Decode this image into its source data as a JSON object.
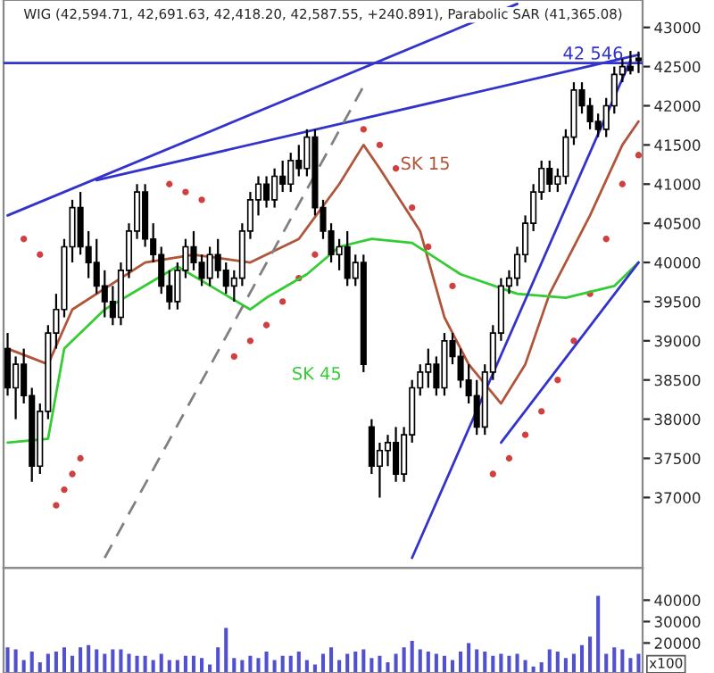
{
  "chart_data": [
    {
      "type": "candlestick",
      "title": "WIG (42,594.71, 42,691.63, 42,418.20, 42,587.55, +240.891), Parabolic SAR (41,365.08)",
      "categories": [
        null,
        null,
        null,
        null,
        null,
        null,
        null,
        null,
        null,
        null,
        null,
        null,
        null,
        null,
        null,
        null,
        null,
        null,
        null,
        null,
        null,
        null,
        null,
        null,
        null,
        null,
        null,
        null,
        null,
        null,
        null,
        null,
        null,
        null,
        null,
        null,
        null,
        null,
        null,
        null,
        null,
        null,
        null,
        null,
        null,
        null,
        null,
        null,
        null,
        null,
        null,
        null,
        null,
        null,
        null,
        null,
        null,
        null,
        null,
        null,
        null,
        null,
        null,
        null,
        null,
        null,
        null,
        null,
        null,
        null,
        null,
        null,
        null,
        null,
        null,
        null,
        null,
        null,
        null
      ],
      "ohlc": [
        [
          38900,
          39100,
          38300,
          38400
        ],
        [
          38400,
          38800,
          38000,
          38700
        ],
        [
          38700,
          38900,
          38200,
          38300
        ],
        [
          38300,
          38400,
          37200,
          37400
        ],
        [
          37400,
          38200,
          37300,
          38100
        ],
        [
          38100,
          39200,
          38000,
          39100
        ],
        [
          39100,
          39600,
          38900,
          39400
        ],
        [
          39400,
          40300,
          39300,
          40200
        ],
        [
          40200,
          40800,
          40000,
          40700
        ],
        [
          40700,
          40900,
          40100,
          40200
        ],
        [
          40200,
          40400,
          39800,
          40000
        ],
        [
          40000,
          40300,
          39600,
          39700
        ],
        [
          39700,
          39900,
          39300,
          39500
        ],
        [
          39500,
          39700,
          39200,
          39300
        ],
        [
          39300,
          40000,
          39200,
          39900
        ],
        [
          39900,
          40500,
          39800,
          40400
        ],
        [
          40400,
          41000,
          40300,
          40900
        ],
        [
          40900,
          41000,
          40200,
          40300
        ],
        [
          40300,
          40500,
          40000,
          40100
        ],
        [
          40100,
          40200,
          39600,
          39700
        ],
        [
          39700,
          39900,
          39400,
          39500
        ],
        [
          39500,
          40000,
          39400,
          39900
        ],
        [
          39900,
          40300,
          39800,
          40200
        ],
        [
          40200,
          40400,
          39900,
          40000
        ],
        [
          40000,
          40100,
          39700,
          39800
        ],
        [
          39800,
          40200,
          39700,
          40100
        ],
        [
          40100,
          40300,
          39800,
          39900
        ],
        [
          39900,
          40000,
          39600,
          39700
        ],
        [
          39700,
          39900,
          39500,
          39800
        ],
        [
          39800,
          40500,
          39700,
          40400
        ],
        [
          40400,
          40900,
          40300,
          40800
        ],
        [
          40800,
          41100,
          40600,
          41000
        ],
        [
          41000,
          41100,
          40700,
          40800
        ],
        [
          40800,
          41200,
          40700,
          41100
        ],
        [
          41100,
          41300,
          40900,
          41000
        ],
        [
          41000,
          41400,
          40900,
          41300
        ],
        [
          41300,
          41500,
          41100,
          41200
        ],
        [
          41200,
          41700,
          41100,
          41600
        ],
        [
          41600,
          41700,
          40600,
          40700
        ],
        [
          40700,
          40800,
          40300,
          40400
        ],
        [
          40400,
          40500,
          40000,
          40100
        ],
        [
          40100,
          40300,
          39900,
          40200
        ],
        [
          40200,
          40400,
          39700,
          39800
        ],
        [
          39800,
          40100,
          39700,
          40000
        ],
        [
          40000,
          40100,
          38600,
          38700
        ],
        [
          37900,
          38000,
          37300,
          37400
        ],
        [
          37400,
          37700,
          37000,
          37600
        ],
        [
          37600,
          37800,
          37400,
          37700
        ],
        [
          37700,
          37900,
          37200,
          37300
        ],
        [
          37300,
          37900,
          37200,
          37800
        ],
        [
          37800,
          38500,
          37700,
          38400
        ],
        [
          38400,
          38700,
          38300,
          38600
        ],
        [
          38600,
          38900,
          38400,
          38700
        ],
        [
          38700,
          38800,
          38300,
          38400
        ],
        [
          38400,
          39100,
          38300,
          39000
        ],
        [
          39000,
          39100,
          38700,
          38800
        ],
        [
          38800,
          38900,
          38400,
          38500
        ],
        [
          38500,
          38700,
          38200,
          38300
        ],
        [
          38300,
          38500,
          37800,
          37900
        ],
        [
          37900,
          38700,
          37800,
          38600
        ],
        [
          38600,
          39200,
          38500,
          39100
        ],
        [
          39100,
          39800,
          39000,
          39700
        ],
        [
          39700,
          39900,
          39600,
          39800
        ],
        [
          39800,
          40200,
          39700,
          40100
        ],
        [
          40100,
          40600,
          40000,
          40500
        ],
        [
          40500,
          41000,
          40400,
          40900
        ],
        [
          40900,
          41300,
          40800,
          41200
        ],
        [
          41200,
          41300,
          40900,
          41000
        ],
        [
          41000,
          41200,
          40900,
          41100
        ],
        [
          41100,
          41700,
          41000,
          41600
        ],
        [
          41600,
          42300,
          41500,
          42200
        ],
        [
          42200,
          42300,
          41900,
          42000
        ],
        [
          42000,
          42100,
          41700,
          41800
        ],
        [
          41800,
          41900,
          41600,
          41700
        ],
        [
          41700,
          42100,
          41600,
          42000
        ],
        [
          42000,
          42500,
          41900,
          42400
        ],
        [
          42400,
          42600,
          42300,
          42500
        ],
        [
          42500,
          42700,
          42400,
          42450
        ],
        [
          42594.71,
          42691.63,
          42418.2,
          42587.55
        ]
      ],
      "series": [
        {
          "type": "line",
          "color": "#b0553a",
          "values": [
            38900,
            null,
            null,
            null,
            null,
            38700,
            null,
            null,
            39400,
            null,
            null,
            null,
            null,
            null,
            null,
            null,
            null,
            40000,
            null,
            null,
            null,
            null,
            null,
            40100,
            null,
            null,
            null,
            null,
            null,
            null,
            40000,
            null,
            null,
            null,
            null,
            null,
            40300,
            null,
            null,
            null,
            null,
            41000,
            null,
            null,
            41500,
            null,
            41200,
            null,
            null,
            null,
            null,
            40400,
            null,
            null,
            39300,
            null,
            null,
            38700,
            null,
            null,
            null,
            38200,
            null,
            null,
            38700,
            null,
            null,
            39600,
            null,
            null,
            null,
            null,
            40600,
            null,
            null,
            null,
            41500,
            null,
            41800
          ]
        },
        {
          "type": "line",
          "color": "#33cc33",
          "values": [
            37700,
            null,
            null,
            null,
            null,
            37750,
            null,
            38900,
            null,
            null,
            null,
            null,
            39400,
            null,
            null,
            null,
            null,
            null,
            null,
            null,
            null,
            39950,
            null,
            null,
            null,
            null,
            null,
            null,
            null,
            null,
            39400,
            null,
            39550,
            null,
            null,
            null,
            null,
            39850,
            null,
            null,
            null,
            40200,
            null,
            null,
            null,
            40300,
            null,
            null,
            null,
            null,
            40250,
            null,
            null,
            40050,
            null,
            null,
            39850,
            null,
            null,
            null,
            null,
            null,
            null,
            39600,
            null,
            null,
            null,
            null,
            null,
            39550,
            null,
            null,
            null,
            null,
            null,
            39700,
            null,
            null,
            40000
          ]
        },
        {
          "type": "scatter",
          "color": "#d04040",
          "values": [
            null,
            null,
            40300,
            null,
            40100,
            null,
            36900,
            37100,
            37300,
            37500,
            null,
            null,
            null,
            null,
            null,
            null,
            null,
            null,
            null,
            null,
            41000,
            null,
            40900,
            null,
            40800,
            null,
            null,
            null,
            38800,
            null,
            39000,
            null,
            39200,
            null,
            39500,
            null,
            39800,
            null,
            40100,
            null,
            null,
            null,
            null,
            null,
            41700,
            null,
            41500,
            null,
            41200,
            null,
            40700,
            null,
            40200,
            null,
            null,
            39700,
            null,
            null,
            null,
            null,
            37300,
            null,
            37500,
            null,
            37800,
            null,
            38100,
            null,
            38500,
            null,
            39000,
            null,
            39600,
            null,
            40300,
            null,
            41000,
            null,
            41370
          ]
        },
        {
          "type": "line",
          "color": "#3333cc",
          "values": [
            40600,
            null,
            null,
            null,
            null,
            null,
            null,
            null,
            null,
            null,
            null,
            null,
            null,
            null,
            null,
            null,
            null,
            null,
            null,
            null,
            null,
            null,
            null,
            null,
            null,
            null,
            null,
            null,
            null,
            null,
            null,
            null,
            null,
            null,
            null,
            null,
            null,
            null,
            null,
            null,
            null,
            null,
            null,
            null,
            null,
            null,
            null,
            null,
            null,
            null,
            null,
            null,
            null,
            null,
            null,
            null,
            null,
            null,
            null,
            null,
            null,
            null,
            null,
            43300,
            null,
            null,
            null,
            null,
            null,
            null,
            null,
            null,
            null,
            null,
            null,
            null,
            null,
            null,
            null
          ]
        },
        {
          "type": "line",
          "color": "#3333cc",
          "values": [
            null,
            null,
            null,
            null,
            null,
            null,
            null,
            null,
            null,
            null,
            null,
            41050,
            null,
            null,
            null,
            null,
            null,
            null,
            null,
            null,
            null,
            null,
            null,
            null,
            null,
            null,
            null,
            null,
            null,
            null,
            null,
            null,
            null,
            null,
            null,
            null,
            null,
            null,
            null,
            null,
            null,
            null,
            null,
            null,
            null,
            null,
            null,
            null,
            null,
            null,
            null,
            null,
            null,
            null,
            null,
            null,
            null,
            null,
            null,
            null,
            null,
            null,
            null,
            null,
            null,
            null,
            null,
            null,
            null,
            null,
            null,
            null,
            null,
            null,
            null,
            null,
            null,
            null,
            42650
          ]
        },
        {
          "type": "line",
          "color": "#3333cc",
          "values": [
            null,
            null,
            null,
            null,
            null,
            null,
            null,
            null,
            null,
            null,
            null,
            null,
            null,
            null,
            null,
            null,
            null,
            null,
            null,
            null,
            null,
            null,
            null,
            null,
            null,
            null,
            null,
            null,
            null,
            null,
            null,
            null,
            null,
            null,
            null,
            null,
            null,
            null,
            null,
            null,
            null,
            null,
            null,
            null,
            null,
            null,
            null,
            null,
            null,
            null,
            36230,
            null,
            null,
            null,
            null,
            null,
            null,
            null,
            null,
            null,
            null,
            null,
            null,
            null,
            null,
            null,
            null,
            null,
            null,
            null,
            null,
            null,
            null,
            null,
            null,
            null,
            null,
            42580,
            null
          ]
        },
        {
          "type": "line",
          "color": "#3333cc",
          "values": [
            null,
            null,
            null,
            null,
            null,
            null,
            null,
            null,
            null,
            null,
            null,
            null,
            null,
            null,
            null,
            null,
            null,
            null,
            null,
            null,
            null,
            null,
            null,
            null,
            null,
            null,
            null,
            null,
            null,
            null,
            null,
            null,
            null,
            null,
            null,
            null,
            null,
            null,
            null,
            null,
            null,
            null,
            null,
            null,
            null,
            null,
            null,
            null,
            null,
            null,
            null,
            null,
            null,
            null,
            null,
            null,
            null,
            null,
            null,
            null,
            null,
            37700,
            null,
            null,
            null,
            null,
            null,
            null,
            null,
            null,
            null,
            null,
            null,
            null,
            null,
            null,
            null,
            null,
            40000
          ]
        },
        {
          "type": "line",
          "color": "#808080",
          "line_style": "dashed",
          "values": [
            null,
            null,
            null,
            null,
            null,
            null,
            null,
            null,
            null,
            null,
            null,
            null,
            36230,
            null,
            null,
            null,
            null,
            null,
            null,
            null,
            null,
            null,
            null,
            null,
            null,
            null,
            null,
            null,
            null,
            null,
            null,
            null,
            null,
            null,
            null,
            null,
            null,
            null,
            null,
            null,
            null,
            null,
            null,
            null,
            42250,
            null,
            null,
            null,
            null,
            null,
            null,
            null,
            null,
            null,
            null,
            null,
            null,
            null,
            null,
            null,
            null,
            null,
            null,
            null,
            null,
            null,
            null,
            null,
            null,
            null,
            null,
            null,
            null,
            null,
            null,
            null,
            null,
            null,
            null
          ]
        }
      ],
      "ref_lines": [
        {
          "axis": "y",
          "value": 42546,
          "label": "42 546",
          "color": "#3333cc"
        }
      ],
      "annotations": [
        "SK 15",
        "SK 45"
      ],
      "ylim": [
        36100,
        43350
      ],
      "yticks": [
        37000,
        37500,
        38000,
        38500,
        39000,
        39500,
        40000,
        40500,
        41000,
        41500,
        42000,
        42500,
        43000
      ],
      "tick_labels": "y",
      "grid": false
    },
    {
      "type": "bar",
      "color": "#5050d0",
      "ylabel": "x100",
      "categories": [
        null,
        null,
        null,
        null,
        null,
        null,
        null,
        null,
        null,
        null,
        null,
        null,
        null,
        null,
        null,
        null,
        null,
        null,
        null,
        null,
        null,
        null,
        null,
        null,
        null,
        null,
        null,
        null,
        null,
        null,
        null,
        null,
        null,
        null,
        null,
        null,
        null,
        null,
        null,
        null,
        null,
        null,
        null,
        null,
        null,
        null,
        null,
        null,
        null,
        null,
        null,
        null,
        null,
        null,
        null,
        null,
        null,
        null,
        null,
        null,
        null,
        null,
        null,
        null,
        null,
        null,
        null,
        null,
        null,
        null,
        null,
        null,
        null,
        null,
        null,
        null,
        null,
        null,
        null
      ],
      "values": [
        18000,
        17000,
        12000,
        16000,
        11000,
        15000,
        16000,
        18000,
        14000,
        18000,
        19000,
        17000,
        15000,
        17000,
        17000,
        15000,
        14000,
        14000,
        12000,
        15000,
        12000,
        12000,
        14000,
        14000,
        13000,
        10000,
        18000,
        27000,
        13000,
        12000,
        14000,
        13000,
        16000,
        12000,
        14000,
        14000,
        16000,
        12000,
        10000,
        15000,
        18000,
        12000,
        15000,
        16000,
        17000,
        13000,
        14000,
        11000,
        15000,
        18000,
        21000,
        17000,
        16000,
        15000,
        14000,
        12000,
        16000,
        20000,
        17000,
        16000,
        14000,
        15000,
        14000,
        15000,
        12000,
        9000,
        11000,
        17000,
        16000,
        13000,
        15000,
        19000,
        23000,
        42000,
        15000,
        18000,
        17000,
        13000,
        15000
      ],
      "ylim": [
        6000,
        55000
      ],
      "yticks": [
        20000,
        30000,
        40000
      ],
      "tick_labels": "y",
      "grid": false
    }
  ]
}
